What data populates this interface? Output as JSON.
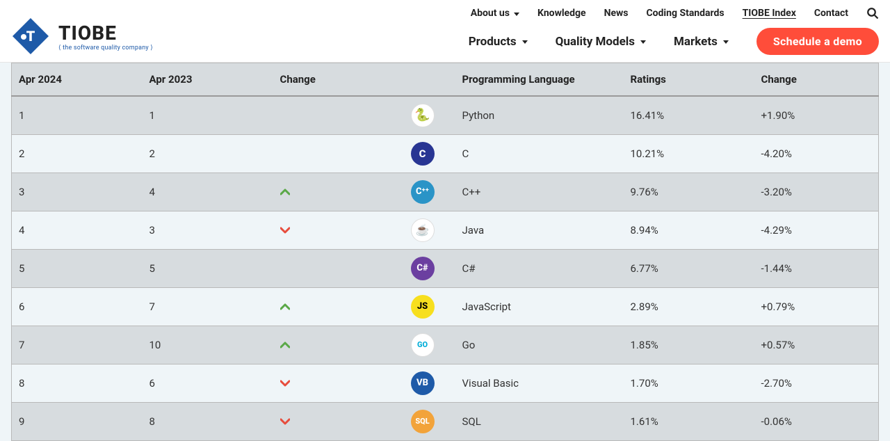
{
  "brand": {
    "name": "TIOBE",
    "tagline": "⟨ the software quality company ⟩",
    "logo_color": "#1e5aa8"
  },
  "nav": {
    "top": [
      {
        "label": "About us",
        "has_caret": true,
        "active": false
      },
      {
        "label": "Knowledge",
        "has_caret": false,
        "active": false
      },
      {
        "label": "News",
        "has_caret": false,
        "active": false
      },
      {
        "label": "Coding Standards",
        "has_caret": false,
        "active": false
      },
      {
        "label": "TIOBE Index",
        "has_caret": false,
        "active": true
      },
      {
        "label": "Contact",
        "has_caret": false,
        "active": false
      }
    ],
    "bottom": [
      {
        "label": "Products",
        "has_caret": true
      },
      {
        "label": "Quality Models",
        "has_caret": true
      },
      {
        "label": "Markets",
        "has_caret": true
      }
    ],
    "cta": "Schedule a demo"
  },
  "table": {
    "headers": {
      "apr2024": "Apr 2024",
      "apr2023": "Apr 2023",
      "change_icon": "Change",
      "lang": "Programming Language",
      "ratings": "Ratings",
      "change": "Change"
    },
    "rows": [
      {
        "apr2024": "1",
        "apr2023": "1",
        "dir": "",
        "lang": "Python",
        "ratings": "16.41%",
        "change": "+1.90%",
        "icon_bg": "#ffffff",
        "icon_fg": "#3776ab",
        "icon_text": "🐍",
        "icon_font": 18
      },
      {
        "apr2024": "2",
        "apr2023": "2",
        "dir": "",
        "lang": "C",
        "ratings": "10.21%",
        "change": "-4.20%",
        "icon_bg": "#283593",
        "icon_fg": "#ffffff",
        "icon_text": "C",
        "icon_font": 15
      },
      {
        "apr2024": "3",
        "apr2023": "4",
        "dir": "up",
        "lang": "C++",
        "ratings": "9.76%",
        "change": "-3.20%",
        "icon_bg": "#2a94c7",
        "icon_fg": "#ffffff",
        "icon_text": "C⁺⁺",
        "icon_font": 13
      },
      {
        "apr2024": "4",
        "apr2023": "3",
        "dir": "down",
        "lang": "Java",
        "ratings": "8.94%",
        "change": "-4.29%",
        "icon_bg": "#ffffff",
        "icon_fg": "#e76f00",
        "icon_text": "☕",
        "icon_font": 16
      },
      {
        "apr2024": "5",
        "apr2023": "5",
        "dir": "",
        "lang": "C#",
        "ratings": "6.77%",
        "change": "-1.44%",
        "icon_bg": "#6b3fa0",
        "icon_fg": "#ffffff",
        "icon_text": "C#",
        "icon_font": 13
      },
      {
        "apr2024": "6",
        "apr2023": "7",
        "dir": "up",
        "lang": "JavaScript",
        "ratings": "2.89%",
        "change": "+0.79%",
        "icon_bg": "#f7df1e",
        "icon_fg": "#000000",
        "icon_text": "JS",
        "icon_font": 13
      },
      {
        "apr2024": "7",
        "apr2023": "10",
        "dir": "up",
        "lang": "Go",
        "ratings": "1.85%",
        "change": "+0.57%",
        "icon_bg": "#ffffff",
        "icon_fg": "#00add8",
        "icon_text": "GO",
        "icon_font": 11
      },
      {
        "apr2024": "8",
        "apr2023": "6",
        "dir": "down",
        "lang": "Visual Basic",
        "ratings": "1.70%",
        "change": "-2.70%",
        "icon_bg": "#1e5aa8",
        "icon_fg": "#ffffff",
        "icon_text": "VB",
        "icon_font": 13
      },
      {
        "apr2024": "9",
        "apr2023": "8",
        "dir": "down",
        "lang": "SQL",
        "ratings": "1.61%",
        "change": "-0.06%",
        "icon_bg": "#f2a33a",
        "icon_fg": "#ffffff",
        "icon_text": "SQL",
        "icon_font": 11
      }
    ],
    "arrow_up_color": "#5aa847",
    "arrow_down_color": "#e74c3c"
  }
}
